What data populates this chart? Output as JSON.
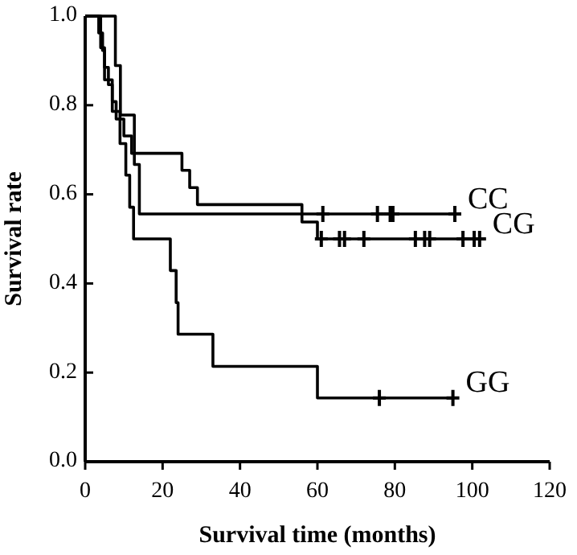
{
  "chart_data": {
    "type": "step",
    "xlabel": "Survival time (months)",
    "ylabel": "Survival rate",
    "xlim": [
      0,
      120
    ],
    "xticks": [
      0,
      20,
      40,
      60,
      80,
      100,
      120
    ],
    "ylim": [
      0,
      1
    ],
    "yticks": [
      {
        "value": 0,
        "label": "0.0"
      },
      {
        "value": 0.2,
        "label": "0.2"
      },
      {
        "value": 0.4,
        "label": "0.4"
      },
      {
        "value": 0.6,
        "label": "0.6"
      },
      {
        "value": 0.8,
        "label": "0.8"
      },
      {
        "value": 1,
        "label": "1.0"
      }
    ],
    "grid": false,
    "legend": "right",
    "series": [
      {
        "name": "CC",
        "color": "#000000",
        "x": [
          0,
          7.8,
          9.1,
          12.7,
          14,
          95.5
        ],
        "values": [
          1,
          0.889,
          0.778,
          0.667,
          0.556,
          0.556
        ]
      },
      {
        "name": "CG",
        "color": "#000000",
        "x": [
          0,
          3.5,
          4.5,
          5,
          6,
          7,
          8,
          10,
          12,
          25,
          27,
          29,
          56,
          60,
          101.9
        ],
        "values": [
          1,
          0.962,
          0.923,
          0.885,
          0.846,
          0.808,
          0.769,
          0.731,
          0.692,
          0.654,
          0.615,
          0.577,
          0.538,
          0.5,
          0.5
        ]
      },
      {
        "name": "GG",
        "color": "#000000",
        "x": [
          0,
          4,
          5,
          7,
          9,
          10.5,
          11.5,
          12.5,
          22,
          23.5,
          24,
          33,
          60,
          95
        ],
        "values": [
          1,
          0.929,
          0.857,
          0.786,
          0.714,
          0.643,
          0.571,
          0.5,
          0.429,
          0.357,
          0.286,
          0.214,
          0.143,
          0.143
        ]
      },
      {
        "type": "scatter",
        "marker": "cross",
        "color": "#000000",
        "x": [
          61.4,
          75.5,
          78.8,
          79.5,
          95.5
        ],
        "values": [
          0.556,
          0.556,
          0.556,
          0.556,
          0.556
        ]
      },
      {
        "type": "scatter",
        "marker": "cross",
        "color": "#000000",
        "x": [
          61,
          65.7,
          67,
          72,
          85.3,
          87.7,
          89,
          97.6,
          100.5,
          101.9
        ],
        "values": [
          0.5,
          0.5,
          0.5,
          0.5,
          0.5,
          0.5,
          0.5,
          0.5,
          0.5,
          0.5
        ]
      },
      {
        "type": "scatter",
        "marker": "cross",
        "color": "#000000",
        "x": [
          76,
          95
        ],
        "values": [
          0.143,
          0.143
        ]
      }
    ]
  }
}
